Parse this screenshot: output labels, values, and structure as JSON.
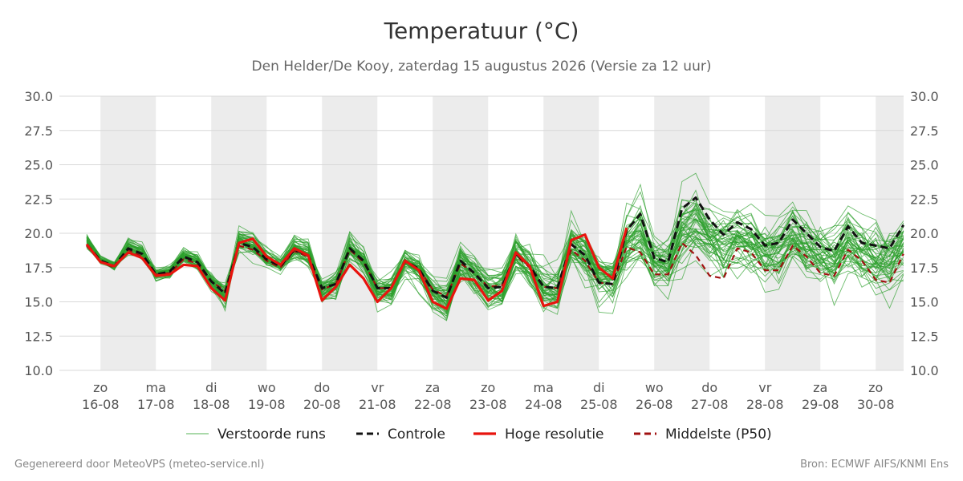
{
  "header": {
    "title": "Temperatuur (°C)",
    "subtitle": "Den Helder/De Kooy, zaterdag 15 augustus 2026 (Versie za 12 uur)"
  },
  "footer": {
    "left": "Gegenereerd door MeteoVPS (meteo-service.nl)",
    "right": "Bron: ECMWF AIFS/KNMI Ens"
  },
  "chart_data": {
    "type": "line",
    "title": "Temperatuur (°C)",
    "subtitle": "Den Helder/De Kooy, zaterdag 15 augustus 2026 (Versie za 12 uur)",
    "ylim": [
      10,
      30
    ],
    "yticks": [
      "10.0",
      "12.5",
      "15.0",
      "17.5",
      "20.0",
      "22.5",
      "25.0",
      "27.5",
      "30.0"
    ],
    "grid": true,
    "x_start": "2026-08-15 21:00",
    "x_step_hours": 6,
    "x_ticks": [
      {
        "day": "zo",
        "date": "16-08"
      },
      {
        "day": "ma",
        "date": "17-08"
      },
      {
        "day": "di",
        "date": "18-08"
      },
      {
        "day": "wo",
        "date": "19-08"
      },
      {
        "day": "do",
        "date": "20-08"
      },
      {
        "day": "vr",
        "date": "21-08"
      },
      {
        "day": "za",
        "date": "22-08"
      },
      {
        "day": "zo",
        "date": "23-08"
      },
      {
        "day": "ma",
        "date": "24-08"
      },
      {
        "day": "di",
        "date": "25-08"
      },
      {
        "day": "wo",
        "date": "26-08"
      },
      {
        "day": "do",
        "date": "27-08"
      },
      {
        "day": "vr",
        "date": "28-08"
      },
      {
        "day": "za",
        "date": "29-08"
      },
      {
        "day": "zo",
        "date": "30-08"
      }
    ],
    "legend_position": "bottom",
    "legend": [
      {
        "label": "Verstoorde runs",
        "color": "#2ca02c",
        "style": "thin"
      },
      {
        "label": "Controle",
        "color": "#111111",
        "style": "dashed"
      },
      {
        "label": "Hoge resolutie",
        "color": "#e8140e",
        "style": "solid"
      },
      {
        "label": "Middelste (P50)",
        "color": "#a01010",
        "style": "dashed"
      }
    ],
    "ensemble_runs": 50,
    "series": [
      {
        "name": "Controle",
        "color": "#111111",
        "values": [
          19.2,
          18.0,
          17.6,
          18.9,
          18.5,
          17.0,
          17.2,
          18.3,
          17.9,
          16.5,
          15.6,
          19.3,
          19.0,
          18.1,
          17.6,
          18.8,
          18.4,
          16.0,
          16.3,
          18.9,
          18.0,
          16.0,
          16.0,
          18.0,
          17.4,
          15.8,
          15.3,
          18.0,
          17.1,
          16.0,
          16.1,
          18.5,
          17.6,
          16.1,
          16.0,
          19.2,
          18.4,
          16.4,
          16.3,
          20.2,
          21.4,
          18.2,
          17.9,
          21.8,
          22.6,
          21.0,
          19.9,
          20.8,
          20.3,
          19.1,
          19.3,
          21.0,
          20.0,
          19.0,
          18.7,
          20.5,
          19.3,
          19.1,
          18.9,
          20.6
        ]
      },
      {
        "name": "Hoge resolutie",
        "color": "#e8140e",
        "values": [
          19.2,
          17.9,
          17.6,
          18.6,
          18.2,
          16.9,
          17.0,
          17.7,
          17.6,
          16.0,
          15.1,
          19.3,
          19.6,
          18.3,
          17.7,
          18.9,
          18.4,
          15.1,
          16.1,
          17.7,
          16.7,
          15.0,
          16.0,
          18.0,
          17.3,
          15.0,
          14.5,
          16.7,
          16.6,
          15.1,
          15.8,
          18.6,
          17.6,
          14.7,
          15.0,
          19.5,
          19.9,
          17.5,
          16.7,
          20.4
        ]
      },
      {
        "name": "Middelste (P50)",
        "color": "#a01010",
        "values": [
          19.1,
          17.9,
          17.5,
          18.8,
          18.3,
          17.0,
          17.1,
          18.1,
          17.8,
          16.5,
          15.8,
          19.1,
          18.8,
          18.0,
          17.5,
          18.7,
          18.3,
          15.9,
          16.3,
          18.8,
          17.9,
          16.0,
          16.0,
          17.9,
          17.4,
          15.9,
          15.4,
          17.8,
          17.1,
          16.1,
          16.2,
          18.4,
          17.5,
          16.1,
          16.0,
          18.8,
          18.0,
          16.4,
          16.3,
          19.0,
          18.6,
          17.0,
          17.0,
          19.3,
          18.4,
          16.9,
          16.7,
          18.9,
          18.6,
          17.3,
          17.3,
          19.1,
          18.3,
          17.1,
          16.9,
          18.8,
          18.0,
          16.6,
          16.4,
          18.5
        ]
      }
    ]
  }
}
